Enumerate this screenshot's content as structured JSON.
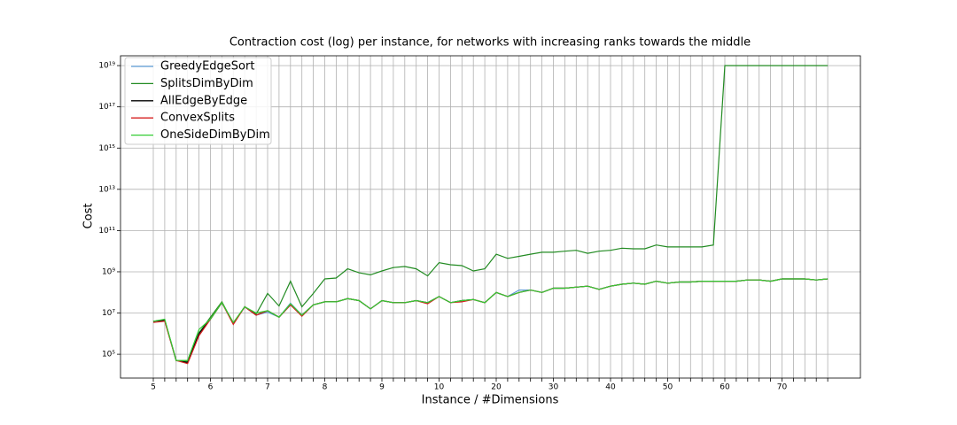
{
  "chart_data": {
    "type": "line",
    "title": "Contraction cost (log) per instance, for networks with increasing ranks towards the middle",
    "xlabel": "Instance / #Dimensions",
    "ylabel": "Cost",
    "log_y": true,
    "grid": true,
    "legend": "upper left",
    "categories": [
      "5",
      null,
      null,
      null,
      null,
      "6",
      null,
      null,
      null,
      null,
      "7",
      null,
      null,
      null,
      null,
      "8",
      null,
      null,
      null,
      null,
      "9",
      null,
      null,
      null,
      null,
      "10",
      null,
      null,
      null,
      null,
      "20",
      null,
      null,
      null,
      null,
      "30",
      null,
      null,
      null,
      null,
      "40",
      null,
      null,
      null,
      null,
      "50",
      null,
      null,
      null,
      null,
      "60",
      null,
      null,
      null,
      null,
      "70",
      null,
      null,
      null,
      null
    ],
    "ylim": [
      7000,
      3e+19
    ],
    "yticks": [
      {
        "value": 100000.0,
        "label": "10⁵"
      },
      {
        "value": 10000000.0,
        "label": "10⁷"
      },
      {
        "value": 1000000000.0,
        "label": "10⁹"
      },
      {
        "value": 100000000000.0,
        "label": "10¹¹"
      },
      {
        "value": 10000000000000.0,
        "label": "10¹³"
      },
      {
        "value": 1000000000000000.0,
        "label": "10¹⁵"
      },
      {
        "value": 1e+17,
        "label": "10¹⁷"
      },
      {
        "value": 1e+19,
        "label": "10¹⁹"
      }
    ],
    "series": [
      {
        "name": "GreedyEdgeSort",
        "color": "#5b9bd5",
        "values": [
          4000000.0,
          4500000.0,
          50000.0,
          40000.0,
          1000000.0,
          5000000.0,
          32000000.0,
          3200000.0,
          20000000.0,
          7900000.0,
          11000000.0,
          6300000.0,
          30000000.0,
          7900000.0,
          25000000.0,
          35000000.0,
          35000000.0,
          50000000.0,
          40000000.0,
          16000000.0,
          40000000.0,
          32000000.0,
          32000000.0,
          40000000.0,
          32000000.0,
          63000000.0,
          32000000.0,
          40000000.0,
          45000000.0,
          32000000.0,
          100000000.0,
          63000000.0,
          130000000.0,
          130000000.0,
          100000000.0,
          160000000.0,
          160000000.0,
          180000000.0,
          200000000.0,
          140000000.0,
          200000000.0,
          250000000.0,
          280000000.0,
          250000000.0,
          350000000.0,
          280000000.0,
          320000000.0,
          320000000.0,
          350000000.0,
          350000000.0,
          350000000.0,
          350000000.0,
          400000000.0,
          400000000.0,
          350000000.0,
          450000000.0,
          450000000.0,
          450000000.0,
          400000000.0,
          450000000.0
        ]
      },
      {
        "name": "SplitsDimByDim",
        "color": "#228b22",
        "values": [
          4000000.0,
          4500000.0,
          50000.0,
          45000.0,
          1100000.0,
          6300000.0,
          35000000.0,
          3200000.0,
          20000000.0,
          8900000.0,
          89000000.0,
          22000000.0,
          350000000.0,
          20000000.0,
          89000000.0,
          450000000.0,
          500000000.0,
          1400000000.0,
          890000000.0,
          710000000.0,
          1100000000.0,
          1600000000.0,
          1800000000.0,
          1400000000.0,
          630000000.0,
          2800000000.0,
          2200000000.0,
          2000000000.0,
          1100000000.0,
          1400000000.0,
          7100000000.0,
          4500000000.0,
          5600000000.0,
          7100000000.0,
          8900000000.0,
          8900000000.0,
          10000000000.0,
          11000000000.0,
          7900000000.0,
          10000000000.0,
          11000000000.0,
          14000000000.0,
          13000000000.0,
          13000000000.0,
          20000000000.0,
          16000000000.0,
          16000000000.0,
          16000000000.0,
          16000000000.0,
          20000000000.0,
          1e+19,
          1e+19,
          1e+19,
          1e+19,
          1e+19,
          1e+19,
          1e+19,
          1e+19,
          1e+19,
          1e+19
        ]
      },
      {
        "name": "AllEdgeByEdge",
        "color": "#000000",
        "values": [
          4000000.0,
          4500000.0,
          50000.0,
          40000.0,
          1000000.0,
          5000000.0,
          32000000.0,
          3200000.0,
          20000000.0,
          7900000.0,
          13000000.0,
          6300000.0,
          25000000.0,
          7900000.0,
          25000000.0,
          35000000.0,
          35000000.0,
          50000000.0,
          40000000.0,
          16000000.0,
          40000000.0,
          32000000.0,
          32000000.0,
          40000000.0,
          32000000.0,
          63000000.0,
          32000000.0,
          40000000.0,
          45000000.0,
          32000000.0,
          100000000.0,
          63000000.0,
          100000000.0,
          130000000.0,
          100000000.0,
          160000000.0,
          160000000.0,
          180000000.0,
          200000000.0,
          140000000.0,
          200000000.0,
          250000000.0,
          280000000.0,
          250000000.0,
          350000000.0,
          280000000.0,
          320000000.0,
          320000000.0,
          350000000.0,
          350000000.0,
          350000000.0,
          350000000.0,
          400000000.0,
          400000000.0,
          350000000.0,
          450000000.0,
          450000000.0,
          450000000.0,
          400000000.0,
          450000000.0
        ]
      },
      {
        "name": "ConvexSplits",
        "color": "#d62020",
        "values": [
          3500000.0,
          4000000.0,
          50000.0,
          35000.0,
          800000.0,
          5000000.0,
          32000000.0,
          2800000.0,
          20000000.0,
          7900000.0,
          13000000.0,
          6300000.0,
          25000000.0,
          7000000.0,
          25000000.0,
          35000000.0,
          35000000.0,
          50000000.0,
          40000000.0,
          16000000.0,
          40000000.0,
          32000000.0,
          32000000.0,
          40000000.0,
          28000000.0,
          63000000.0,
          32000000.0,
          35000000.0,
          45000000.0,
          32000000.0,
          100000000.0,
          63000000.0,
          100000000.0,
          130000000.0,
          100000000.0,
          160000000.0,
          160000000.0,
          180000000.0,
          200000000.0,
          140000000.0,
          200000000.0,
          250000000.0,
          280000000.0,
          250000000.0,
          350000000.0,
          280000000.0,
          320000000.0,
          320000000.0,
          350000000.0,
          350000000.0,
          350000000.0,
          350000000.0,
          400000000.0,
          400000000.0,
          350000000.0,
          450000000.0,
          450000000.0,
          450000000.0,
          400000000.0,
          450000000.0
        ]
      },
      {
        "name": "OneSideDimByDim",
        "color": "#32cd32",
        "values": [
          4000000.0,
          5000000.0,
          50000.0,
          50000.0,
          1600000.0,
          5000000.0,
          32000000.0,
          3500000.0,
          20000000.0,
          10000000.0,
          13000000.0,
          6300000.0,
          28000000.0,
          7900000.0,
          25000000.0,
          35000000.0,
          35000000.0,
          50000000.0,
          40000000.0,
          16000000.0,
          40000000.0,
          32000000.0,
          32000000.0,
          40000000.0,
          32000000.0,
          63000000.0,
          32000000.0,
          40000000.0,
          45000000.0,
          32000000.0,
          100000000.0,
          63000000.0,
          100000000.0,
          130000000.0,
          100000000.0,
          160000000.0,
          160000000.0,
          180000000.0,
          200000000.0,
          140000000.0,
          200000000.0,
          250000000.0,
          280000000.0,
          250000000.0,
          350000000.0,
          280000000.0,
          320000000.0,
          320000000.0,
          350000000.0,
          350000000.0,
          350000000.0,
          350000000.0,
          400000000.0,
          400000000.0,
          350000000.0,
          450000000.0,
          450000000.0,
          450000000.0,
          400000000.0,
          450000000.0
        ]
      }
    ]
  }
}
